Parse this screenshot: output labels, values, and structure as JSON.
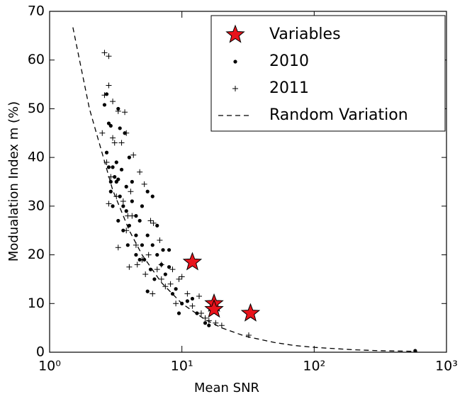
{
  "chart_data": {
    "type": "scatter",
    "x_label": "Mean SNR",
    "y_label": "Modualation Index m (%)",
    "xscale": "log",
    "xlim": [
      1,
      1000
    ],
    "xticks": [
      {
        "value": 1,
        "label": "10⁰"
      },
      {
        "value": 10,
        "label": "10¹"
      },
      {
        "value": 100,
        "label": "10²"
      },
      {
        "value": 1000,
        "label": "10³"
      }
    ],
    "ylim": [
      0,
      70
    ],
    "yticks": [
      0,
      10,
      20,
      30,
      40,
      50,
      60,
      70
    ],
    "legend": "upper right",
    "series": [
      {
        "name": "Variables",
        "marker": "star",
        "color": "#e8131b",
        "x": [
          12,
          17.5,
          17.5,
          33
        ],
        "values": [
          18.5,
          10,
          8.8,
          8
        ]
      },
      {
        "name": "2010",
        "marker": "dot",
        "color": "#000000",
        "x": [
          2.6,
          2.7,
          2.8,
          2.9,
          2.7,
          2.8,
          3.0,
          3.1,
          2.9,
          3.0,
          3.2,
          3.3,
          3.5,
          3.4,
          3.6,
          3.8,
          3.3,
          3.6,
          4.0,
          4.2,
          4.5,
          4.8,
          3.9,
          4.5,
          5.0,
          5.2,
          5.5,
          6.0,
          6.5,
          7.0,
          5.8,
          6.2,
          7.5,
          8.0,
          8.5,
          9.0,
          10,
          9.5,
          11,
          12,
          13,
          15,
          16,
          4.0,
          4.2,
          3.7,
          3.3,
          3.4,
          5.0,
          5.5,
          6.0,
          6.5,
          7.2,
          8.0,
          4.5,
          3.8,
          3.2,
          2.9,
          4.8,
          5.5,
          580
        ],
        "values": [
          50.8,
          53,
          47,
          46.5,
          41,
          38,
          38,
          36,
          33,
          30,
          35,
          35.5,
          37.5,
          32,
          30,
          29,
          27,
          25,
          26,
          31,
          28,
          27,
          22,
          20,
          22,
          19,
          24,
          22,
          20,
          18,
          17,
          15,
          16,
          17.5,
          12,
          13,
          10,
          8,
          10.5,
          11,
          8,
          6,
          5.5,
          40,
          35,
          45,
          50,
          46,
          30,
          33,
          32,
          26,
          21,
          21,
          24,
          34,
          39,
          35,
          19,
          12.5,
          0.3
        ]
      },
      {
        "name": "2011",
        "marker": "plus",
        "color": "#000000",
        "x": [
          2.6,
          2.8,
          2.8,
          3.0,
          2.6,
          3.3,
          3.7,
          3.8,
          4.3,
          3.5,
          3.0,
          2.7,
          2.9,
          3.2,
          3.6,
          4.2,
          2.8,
          3.3,
          3.8,
          4.5,
          5.2,
          5.0,
          5.8,
          6.1,
          6.5,
          7.0,
          7.5,
          8.2,
          9.5,
          10,
          11,
          12,
          13.5,
          14,
          15,
          16,
          18,
          20,
          32,
          4.0,
          4.6,
          5.3,
          6.0,
          7.0,
          8.5,
          3.1,
          2.5,
          4.8,
          5.6,
          6.8,
          9,
          3.9,
          4.1
        ],
        "values": [
          61.5,
          60.8,
          54.8,
          51.5,
          52.8,
          49.5,
          49.3,
          45,
          40.5,
          43,
          44,
          39,
          36,
          32,
          31,
          28,
          30.5,
          21.5,
          25,
          22,
          34.5,
          19,
          27,
          26.5,
          17,
          15,
          13.5,
          14,
          15,
          15.5,
          12,
          9.5,
          11.5,
          8,
          7,
          6.5,
          6,
          5.5,
          3.5,
          17.5,
          18,
          16,
          12,
          18,
          17,
          43,
          45,
          37,
          20,
          23,
          10,
          28,
          33
        ]
      },
      {
        "name": "Random Variation",
        "marker": "dashed",
        "color": "#000000",
        "x": [
          1.5,
          2,
          3,
          4,
          5,
          7,
          10,
          15,
          20,
          30,
          50,
          70,
          100,
          200,
          300,
          600
        ],
        "values": [
          66.7,
          50,
          33.3,
          25,
          20,
          14.3,
          10,
          6.7,
          5,
          3.3,
          2,
          1.4,
          1,
          0.5,
          0.33,
          0.17
        ]
      }
    ]
  }
}
